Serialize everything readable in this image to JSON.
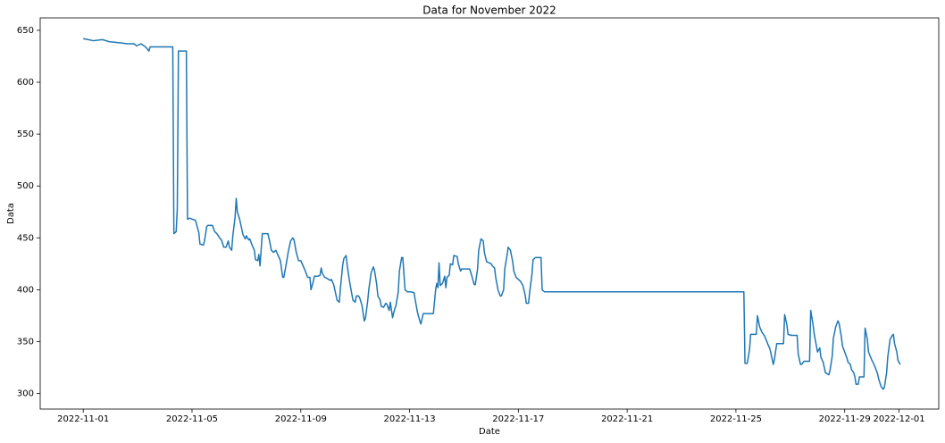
{
  "chart_data": {
    "type": "line",
    "title": "Data for November 2022",
    "x_label": "Date",
    "y_label": "Data",
    "color": "#1f77b4",
    "grid": false,
    "xlim": [
      "2022-10-30T10:00",
      "2022-12-02T11:00"
    ],
    "xticks": [
      "2022-11-01",
      "2022-11-05",
      "2022-11-09",
      "2022-11-13",
      "2022-11-17",
      "2022-11-21",
      "2022-11-25",
      "2022-11-29",
      "2022-12-01"
    ],
    "ylim": [
      285,
      662
    ],
    "yticks": [
      300,
      350,
      400,
      450,
      500,
      550,
      600,
      650
    ],
    "x": [
      "2022-11-01T00:00",
      "2022-11-01T09:00",
      "2022-11-01T17:00",
      "2022-11-01T23:00",
      "2022-11-02T08:00",
      "2022-11-02T15:00",
      "2022-11-02T21:00",
      "2022-11-02T23:00",
      "2022-11-03T03:00",
      "2022-11-03T07:00",
      "2022-11-03T10:00",
      "2022-11-03T11:00",
      "2022-11-04T07:00",
      "2022-11-04T08:00",
      "2022-11-04T10:00",
      "2022-11-04T11:00",
      "2022-11-04T12:00",
      "2022-11-04T19:00",
      "2022-11-04T20:00",
      "2022-11-04T22:00",
      "2022-11-05T00:00",
      "2022-11-05T03:00",
      "2022-11-05T06:00",
      "2022-11-05T07:00",
      "2022-11-05T10:00",
      "2022-11-05T11:00",
      "2022-11-05T13:00",
      "2022-11-05T14:00",
      "2022-11-05T18:00",
      "2022-11-05T20:00",
      "2022-11-05T22:00",
      "2022-11-06T01:00",
      "2022-11-06T02:00",
      "2022-11-06T04:00",
      "2022-11-06T06:00",
      "2022-11-06T08:00",
      "2022-11-06T09:00",
      "2022-11-06T11:00",
      "2022-11-06T12:00",
      "2022-11-06T14:00",
      "2022-11-06T15:00",
      "2022-11-06T16:00",
      "2022-11-06T18:00",
      "2022-11-06T20:00",
      "2022-11-06T21:00",
      "2022-11-06T23:00",
      "2022-11-07T00:00",
      "2022-11-07T02:00",
      "2022-11-07T03:00",
      "2022-11-07T05:00",
      "2022-11-07T07:00",
      "2022-11-07T08:00",
      "2022-11-07T10:00",
      "2022-11-07T11:00",
      "2022-11-07T12:00",
      "2022-11-07T14:00",
      "2022-11-07T19:00",
      "2022-11-07T21:00",
      "2022-11-07T22:00",
      "2022-11-08T00:00",
      "2022-11-08T02:00",
      "2022-11-08T04:00",
      "2022-11-08T06:00",
      "2022-11-08T08:00",
      "2022-11-08T09:00",
      "2022-11-08T11:00",
      "2022-11-08T13:00",
      "2022-11-08T15:00",
      "2022-11-08T17:00",
      "2022-11-08T18:00",
      "2022-11-08T20:00",
      "2022-11-08T22:00",
      "2022-11-09T00:00",
      "2022-11-09T02:00",
      "2022-11-09T04:00",
      "2022-11-09T06:00",
      "2022-11-09T08:00",
      "2022-11-09T09:00",
      "2022-11-09T11:00",
      "2022-11-09T12:00",
      "2022-11-09T15:00",
      "2022-11-09T17:00",
      "2022-11-09T18:00",
      "2022-11-09T19:00",
      "2022-11-09T21:00",
      "2022-11-09T23:00",
      "2022-11-10T02:00",
      "2022-11-10T03:00",
      "2022-11-10T05:00",
      "2022-11-10T06:00",
      "2022-11-10T08:00",
      "2022-11-10T10:00",
      "2022-11-10T11:00",
      "2022-11-10T13:00",
      "2022-11-10T14:00",
      "2022-11-10T16:00",
      "2022-11-10T17:00",
      "2022-11-10T19:00",
      "2022-11-10T21:00",
      "2022-11-10T22:00",
      "2022-11-11T00:00",
      "2022-11-11T01:00",
      "2022-11-11T03:00",
      "2022-11-11T04:00",
      "2022-11-11T06:00",
      "2022-11-11T08:00",
      "2022-11-11T09:00",
      "2022-11-11T11:00",
      "2022-11-11T12:00",
      "2022-11-11T14:00",
      "2022-11-11T16:00",
      "2022-11-11T17:00",
      "2022-11-11T19:00",
      "2022-11-11T20:00",
      "2022-11-11T22:00",
      "2022-11-11T23:00",
      "2022-11-12T01:00",
      "2022-11-12T03:00",
      "2022-11-12T04:00",
      "2022-11-12T06:00",
      "2022-11-12T07:00",
      "2022-11-12T09:00",
      "2022-11-12T10:00",
      "2022-11-12T12:00",
      "2022-11-12T14:00",
      "2022-11-12T15:00",
      "2022-11-12T17:00",
      "2022-11-12T18:00",
      "2022-11-12T20:00",
      "2022-11-12T22:00",
      "2022-11-13T01:00",
      "2022-11-13T04:00",
      "2022-11-13T05:00",
      "2022-11-13T07:00",
      "2022-11-13T09:00",
      "2022-11-13T10:00",
      "2022-11-13T12:00",
      "2022-11-13T21:00",
      "2022-11-13T23:00",
      "2022-11-14T00:00",
      "2022-11-14T01:00",
      "2022-11-14T02:00",
      "2022-11-14T03:00",
      "2022-11-14T05:00",
      "2022-11-14T07:00",
      "2022-11-14T08:00",
      "2022-11-14T09:00",
      "2022-11-14T11:00",
      "2022-11-14T12:00",
      "2022-11-14T14:00",
      "2022-11-14T15:00",
      "2022-11-14T18:00",
      "2022-11-14T19:00",
      "2022-11-14T21:00",
      "2022-11-14T22:00",
      "2022-11-15T05:00",
      "2022-11-15T07:00",
      "2022-11-15T09:00",
      "2022-11-15T10:00",
      "2022-11-15T12:00",
      "2022-11-15T13:00",
      "2022-11-15T15:00",
      "2022-11-15T17:00",
      "2022-11-15T18:00",
      "2022-11-15T20:00",
      "2022-11-16T00:00",
      "2022-11-16T01:00",
      "2022-11-16T03:00",
      "2022-11-16T04:00",
      "2022-11-16T06:00",
      "2022-11-16T08:00",
      "2022-11-16T09:00",
      "2022-11-16T11:00",
      "2022-11-16T12:00",
      "2022-11-16T14:00",
      "2022-11-16T15:00",
      "2022-11-16T17:00",
      "2022-11-16T19:00",
      "2022-11-16T20:00",
      "2022-11-16T22:00",
      "2022-11-17T00:00",
      "2022-11-17T02:00",
      "2022-11-17T04:00",
      "2022-11-17T06:00",
      "2022-11-17T07:00",
      "2022-11-17T09:00",
      "2022-11-17T10:00",
      "2022-11-17T12:00",
      "2022-11-17T13:00",
      "2022-11-17T15:00",
      "2022-11-17T20:00",
      "2022-11-17T21:00",
      "2022-11-17T23:00",
      "2022-11-25T07:00",
      "2022-11-25T08:00",
      "2022-11-25T10:00",
      "2022-11-25T12:00",
      "2022-11-25T13:00",
      "2022-11-25T18:00",
      "2022-11-25T19:00",
      "2022-11-25T21:00",
      "2022-11-25T23:00",
      "2022-11-26T01:00",
      "2022-11-26T03:00",
      "2022-11-26T04:00",
      "2022-11-26T06:00",
      "2022-11-26T07:00",
      "2022-11-26T09:00",
      "2022-11-26T10:00",
      "2022-11-26T12:00",
      "2022-11-26T18:00",
      "2022-11-26T19:00",
      "2022-11-26T21:00",
      "2022-11-26T22:00",
      "2022-11-27T01:00",
      "2022-11-27T06:00",
      "2022-11-27T07:00",
      "2022-11-27T09:00",
      "2022-11-27T10:00",
      "2022-11-27T12:00",
      "2022-11-27T17:00",
      "2022-11-27T18:00",
      "2022-11-27T20:00",
      "2022-11-27T21:00",
      "2022-11-27T23:00",
      "2022-11-28T00:00",
      "2022-11-28T02:00",
      "2022-11-28T03:00",
      "2022-11-28T05:00",
      "2022-11-28T07:00",
      "2022-11-28T10:00",
      "2022-11-28T11:00",
      "2022-11-28T13:00",
      "2022-11-28T14:00",
      "2022-11-28T16:00",
      "2022-11-28T18:00",
      "2022-11-28T19:00",
      "2022-11-28T21:00",
      "2022-11-28T22:00",
      "2022-11-29T00:00",
      "2022-11-29T02:00",
      "2022-11-29T03:00",
      "2022-11-29T05:00",
      "2022-11-29T06:00",
      "2022-11-29T08:00",
      "2022-11-29T09:00",
      "2022-11-29T10:00",
      "2022-11-29T12:00",
      "2022-11-29T13:00",
      "2022-11-29T17:00",
      "2022-11-29T18:00",
      "2022-11-29T20:00",
      "2022-11-29T21:00",
      "2022-11-30T00:00",
      "2022-11-30T01:00",
      "2022-11-30T03:00",
      "2022-11-30T05:00",
      "2022-11-30T06:00",
      "2022-11-30T08:00",
      "2022-11-30T10:00",
      "2022-11-30T11:00",
      "2022-11-30T13:00",
      "2022-11-30T14:00",
      "2022-11-30T16:00",
      "2022-11-30T18:00",
      "2022-11-30T19:00",
      "2022-11-30T20:00",
      "2022-11-30T22:00",
      "2022-11-30T23:00",
      "2022-12-01T01:00"
    ],
    "values": [
      642,
      640,
      641,
      639,
      638,
      637,
      637,
      635,
      637,
      634,
      630,
      634,
      634,
      454,
      456,
      478,
      630,
      630,
      468,
      469,
      468,
      467,
      455,
      444,
      443,
      447,
      461,
      462,
      462,
      456,
      454,
      449,
      448,
      441,
      441,
      447,
      441,
      438,
      452,
      470,
      488,
      475,
      468,
      458,
      453,
      449,
      452,
      448,
      449,
      443,
      438,
      429,
      428,
      434,
      423,
      454,
      454,
      444,
      438,
      436,
      438,
      433,
      428,
      412,
      412,
      424,
      437,
      447,
      450,
      448,
      436,
      428,
      428,
      423,
      418,
      412,
      412,
      400,
      408,
      413,
      413,
      414,
      421,
      416,
      412,
      411,
      409,
      410,
      405,
      400,
      390,
      388,
      402,
      424,
      430,
      433,
      423,
      408,
      396,
      390,
      388,
      394,
      394,
      392,
      385,
      370,
      372,
      389,
      400,
      416,
      422,
      419,
      405,
      394,
      390,
      384,
      383,
      387,
      386,
      380,
      388,
      373,
      378,
      385,
      398,
      418,
      431,
      431,
      400,
      398,
      398,
      397,
      390,
      378,
      370,
      367,
      377,
      377,
      400,
      406,
      402,
      426,
      404,
      406,
      413,
      402,
      412,
      414,
      425,
      424,
      433,
      432,
      425,
      418,
      420,
      420,
      413,
      405,
      405,
      420,
      438,
      449,
      447,
      436,
      427,
      425,
      423,
      421,
      412,
      400,
      394,
      394,
      400,
      420,
      433,
      441,
      438,
      427,
      418,
      412,
      410,
      408,
      404,
      395,
      387,
      387,
      398,
      415,
      429,
      431,
      431,
      400,
      398,
      398,
      329,
      329,
      342,
      357,
      357,
      375,
      364,
      359,
      356,
      351,
      348,
      343,
      338,
      328,
      333,
      348,
      348,
      376,
      366,
      357,
      356,
      356,
      338,
      328,
      328,
      331,
      331,
      380,
      367,
      358,
      346,
      340,
      344,
      335,
      330,
      320,
      318,
      322,
      336,
      353,
      364,
      370,
      368,
      355,
      346,
      340,
      334,
      330,
      328,
      323,
      320,
      316,
      309,
      309,
      316,
      316,
      363,
      352,
      340,
      332,
      330,
      325,
      319,
      314,
      307,
      304,
      306,
      320,
      335,
      352,
      356,
      357,
      348,
      340,
      332,
      328
    ]
  }
}
